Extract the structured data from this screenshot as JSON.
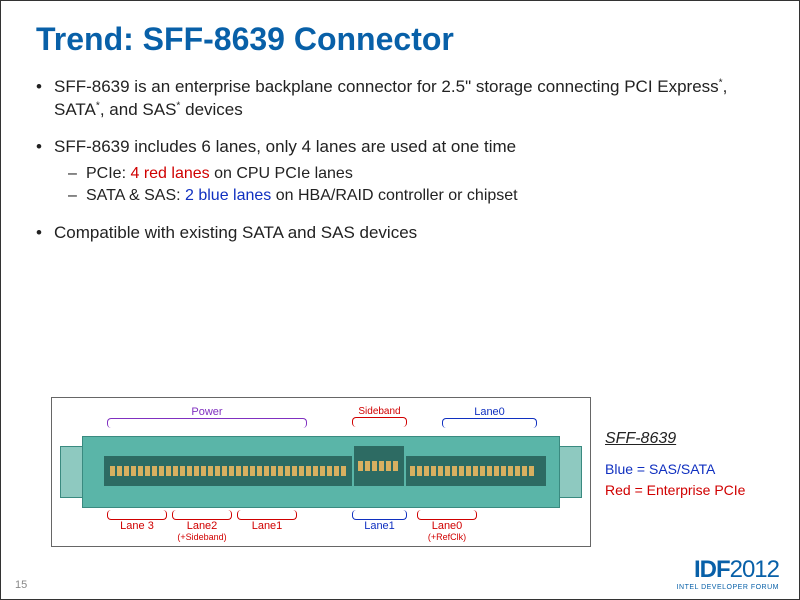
{
  "title": "Trend: SFF-8639 Connector",
  "bullets": {
    "b1_pre": "SFF-8639 is an enterprise backplane connector for 2.5\" storage connecting PCI Express",
    "b1_mid": ", SATA",
    "b1_mid2": ", and SAS",
    "b1_post": " devices",
    "b2": "SFF-8639 includes 6 lanes, only 4 lanes are used at one time",
    "b2a_pre": "PCIe: ",
    "b2a_red": "4 red lanes",
    "b2a_post": " on CPU PCIe lanes",
    "b2b_pre": "SATA & SAS: ",
    "b2b_blue": "2 blue lanes",
    "b2b_post": " on HBA/RAID controller or chipset",
    "b3": "Compatible with existing SATA and SAS devices"
  },
  "diagram": {
    "top_power": "Power",
    "top_sideband": "Sideband",
    "top_lane0": "Lane0",
    "bot_lane3": "Lane 3",
    "bot_lane2": "Lane2",
    "bot_lane2_sub": "(+Sideband)",
    "bot_lane1_red": "Lane1",
    "bot_lane1_blue": "Lane1",
    "bot_lane0_red": "Lane0",
    "bot_lane0_sub": "(+RefClk)"
  },
  "legend": {
    "name": "SFF-8639",
    "blue": "Blue = SAS/SATA",
    "red": "Red = Enterprise PCIe"
  },
  "footer": {
    "page": "15",
    "logo_main": "IDF",
    "logo_year": "2012",
    "logo_tag": "INTEL DEVELOPER FORUM"
  },
  "colors": {
    "title": "#0860a8",
    "red": "#d00000",
    "blue": "#1030c0",
    "purple": "#8030c0",
    "connector": "#5ab5a8"
  }
}
